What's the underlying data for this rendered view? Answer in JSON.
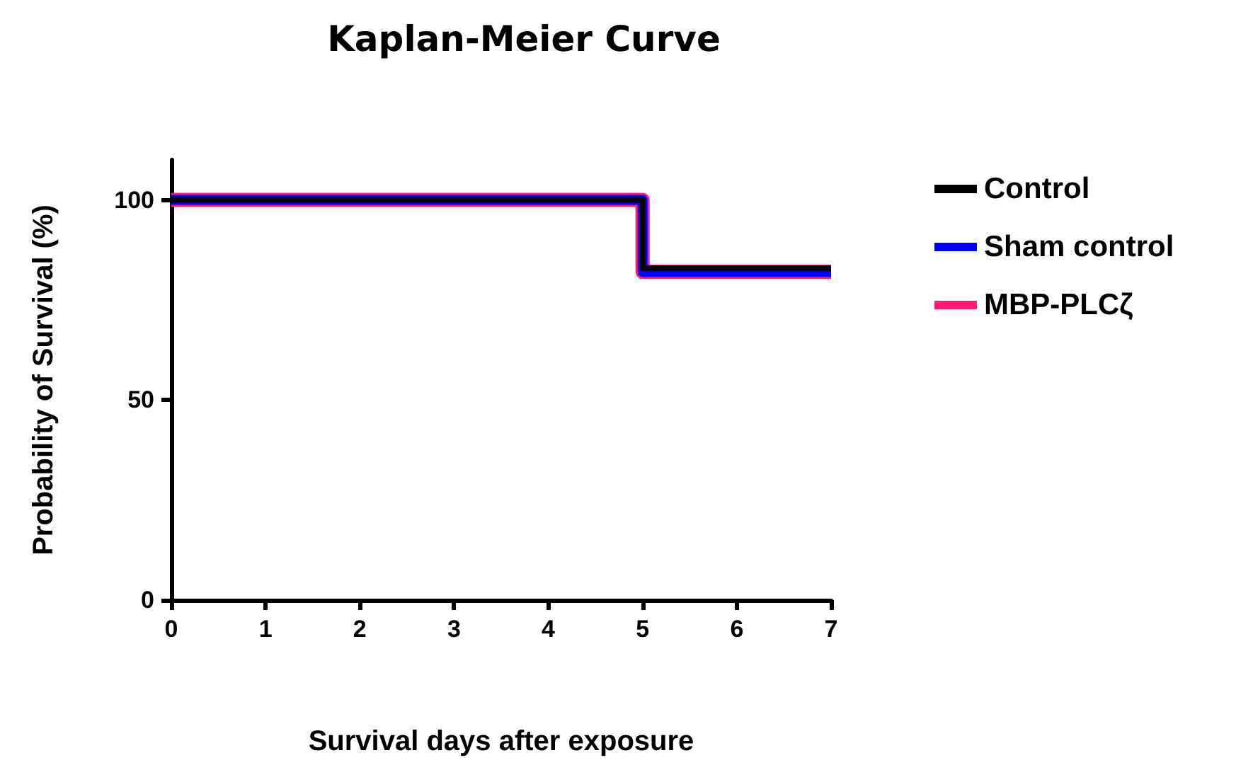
{
  "chart_data": {
    "type": "step",
    "title": "Kaplan-Meier Curve",
    "xlabel": "Survival days after exposure",
    "ylabel": "Probability of Survival (%)",
    "x": [
      0,
      5,
      7
    ],
    "series": [
      {
        "name": "Control",
        "color": "#000000",
        "values": [
          100,
          83,
          83
        ]
      },
      {
        "name": "Sham control",
        "color": "#0000ff",
        "values": [
          100,
          82,
          82
        ]
      },
      {
        "name": "MBP-PLCζ",
        "color": "#ff1a75",
        "values": [
          100,
          82,
          82
        ]
      }
    ],
    "xlim": [
      0,
      7
    ],
    "xticks": [
      0,
      1,
      2,
      3,
      4,
      5,
      6,
      7
    ],
    "ylim": [
      0,
      110
    ],
    "yticks": [
      0,
      50,
      100
    ],
    "grid": false,
    "legend": "right"
  }
}
